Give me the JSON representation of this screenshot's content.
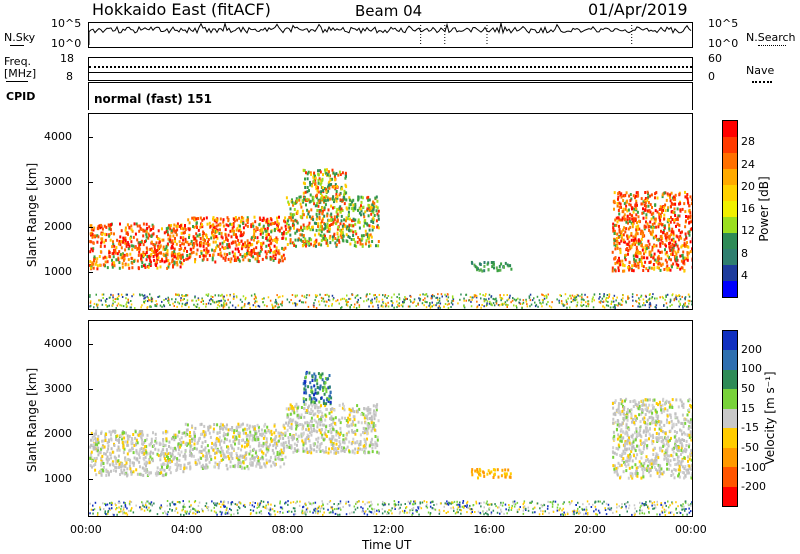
{
  "header": {
    "station": "Hokkaido East (fitACF)",
    "beam": "Beam 04",
    "date": "01/Apr/2019"
  },
  "top_panels": {
    "nsky_label": "N.Sky",
    "nsky_ticks": [
      "10^5",
      "10^0"
    ],
    "nsearch_label": "N.Search",
    "nsearch_ticks": [
      "10^5",
      "10^0"
    ],
    "freq_label": "Freq.",
    "freq_unit": "[MHz]",
    "freq_ticks": [
      "18",
      "8"
    ],
    "nave_label": "Nave",
    "nave_ticks": [
      "60",
      "0"
    ],
    "cpid_label": "CPID",
    "cpid_text": "normal (fast) 151"
  },
  "chart_data": [
    {
      "type": "heatmap",
      "name": "power-panel",
      "ylabel": "Slant Range [km]",
      "y_ticks": [
        "4000",
        "3000",
        "2000",
        "1000"
      ],
      "ylim": [
        180,
        4500
      ],
      "colorbar_label": "Power [dB]",
      "colorbar_ticks": [
        "28",
        "24",
        "20",
        "16",
        "12",
        "8",
        "4"
      ],
      "colorbar_colors": [
        "#ff0000",
        "#ff3a00",
        "#ff7000",
        "#ffaa00",
        "#ffd200",
        "#f0f000",
        "#9adf20",
        "#2e8b57",
        "#2f7f6f",
        "#1e3c9c",
        "#0000ff"
      ],
      "echo_regions": [
        {
          "t0": 0.0,
          "t1": 3.8,
          "r0": 1100,
          "r1": 2100,
          "level": "high"
        },
        {
          "t0": 3.8,
          "t1": 7.8,
          "r0": 1250,
          "r1": 2250,
          "level": "high"
        },
        {
          "t0": 7.8,
          "t1": 11.5,
          "r0": 1600,
          "r1": 2700,
          "level": "mid"
        },
        {
          "t0": 8.5,
          "t1": 10.2,
          "r0": 2600,
          "r1": 3300,
          "level": "mid"
        },
        {
          "t0": 15.2,
          "t1": 16.8,
          "r0": 1050,
          "r1": 1250,
          "level": "low"
        },
        {
          "t0": 20.8,
          "t1": 24.0,
          "r0": 1050,
          "r1": 2800,
          "level": "high"
        }
      ]
    },
    {
      "type": "heatmap",
      "name": "velocity-panel",
      "ylabel": "Slant Range [km]",
      "y_ticks": [
        "4000",
        "3000",
        "2000",
        "1000"
      ],
      "ylim": [
        180,
        4500
      ],
      "colorbar_label": "Velocity [m s⁻¹]",
      "colorbar_ticks": [
        "200",
        "100",
        "50",
        "15",
        "-15",
        "-50",
        "-100",
        "-200"
      ],
      "colorbar_colors": [
        "#1030c0",
        "#2e6fb0",
        "#2e8b57",
        "#78d23a",
        "#c8c8c8",
        "#ffcc00",
        "#ff9900",
        "#ff5500",
        "#ff0000"
      ],
      "x_ticks": [
        "00:00",
        "04:00",
        "08:00",
        "12:00",
        "16:00",
        "20:00",
        "00:00"
      ],
      "xlabel": "Time UT",
      "echo_regions": [
        {
          "t0": 0.0,
          "t1": 3.8,
          "r0": 1100,
          "r1": 2100,
          "level": "gray"
        },
        {
          "t0": 3.8,
          "t1": 7.8,
          "r0": 1250,
          "r1": 2250,
          "level": "gray"
        },
        {
          "t0": 7.8,
          "t1": 11.5,
          "r0": 1600,
          "r1": 2700,
          "level": "gray"
        },
        {
          "t0": 8.5,
          "t1": 9.6,
          "r0": 2700,
          "r1": 3400,
          "level": "blue"
        },
        {
          "t0": 15.2,
          "t1": 16.8,
          "r0": 1050,
          "r1": 1250,
          "level": "orange"
        },
        {
          "t0": 20.8,
          "t1": 24.0,
          "r0": 1050,
          "r1": 2800,
          "level": "gray"
        }
      ]
    }
  ]
}
